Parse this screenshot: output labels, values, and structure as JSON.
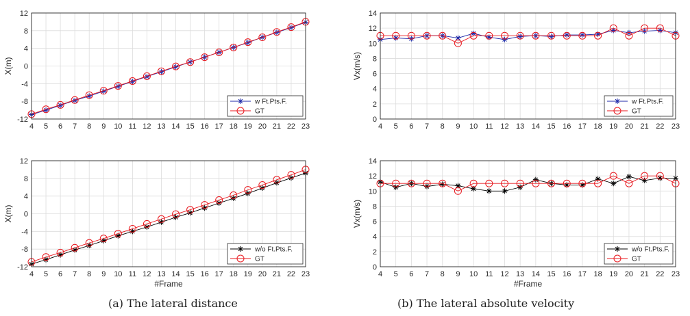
{
  "captions": {
    "a": "(a) The lateral distance",
    "b": "(b) The lateral absolute velocity"
  },
  "colors": {
    "estimate_blue": "#1f2aa8",
    "estimate_black": "#000000",
    "gt_red": "#e8171d"
  },
  "chart_data": [
    {
      "type": "line",
      "ylabel": "X(m)",
      "xlabel": "",
      "xlim": [
        4,
        23
      ],
      "ylim": [
        -12,
        12
      ],
      "yticks": [
        -12,
        -8,
        -4,
        0,
        4,
        8,
        12
      ],
      "x": [
        4,
        5,
        6,
        7,
        8,
        9,
        10,
        11,
        12,
        13,
        14,
        15,
        16,
        17,
        18,
        19,
        20,
        21,
        22,
        23
      ],
      "legend": "lower-right",
      "series": [
        {
          "name": "w Ft.Pts.F.",
          "marker": "asterisk",
          "color": "#1f2aa8",
          "values": [
            -11.0,
            -10.0,
            -8.9,
            -7.8,
            -6.8,
            -5.7,
            -4.6,
            -3.5,
            -2.4,
            -1.3,
            -0.2,
            0.9,
            2.0,
            3.1,
            4.2,
            5.3,
            6.5,
            7.6,
            8.7,
            9.9
          ]
        },
        {
          "name": "GT",
          "marker": "circle",
          "color": "#e8171d",
          "values": [
            -10.9,
            -9.8,
            -8.8,
            -7.7,
            -6.6,
            -5.6,
            -4.5,
            -3.4,
            -2.3,
            -1.2,
            -0.1,
            0.9,
            2.0,
            3.1,
            4.2,
            5.4,
            6.5,
            7.7,
            8.8,
            10.0
          ]
        }
      ]
    },
    {
      "type": "line",
      "ylabel": "Vx(m/s)",
      "xlabel": "",
      "xlim": [
        4,
        23
      ],
      "ylim": [
        0,
        14
      ],
      "yticks": [
        0,
        2,
        4,
        6,
        8,
        10,
        12,
        14
      ],
      "x": [
        4,
        5,
        6,
        7,
        8,
        9,
        10,
        11,
        12,
        13,
        14,
        15,
        16,
        17,
        18,
        19,
        20,
        21,
        22,
        23
      ],
      "legend": "lower-right",
      "series": [
        {
          "name": "w Ft.Pts.F.",
          "marker": "asterisk",
          "color": "#1f2aa8",
          "values": [
            10.5,
            10.7,
            10.6,
            11.0,
            11.0,
            10.7,
            11.3,
            10.8,
            10.5,
            10.9,
            11.0,
            10.9,
            11.1,
            11.1,
            11.2,
            11.7,
            11.4,
            11.6,
            11.7,
            11.4
          ]
        },
        {
          "name": "GT",
          "marker": "circle",
          "color": "#e8171d",
          "values": [
            11.0,
            11.0,
            11.0,
            11.0,
            11.0,
            10.0,
            11.0,
            11.0,
            11.0,
            11.0,
            11.0,
            11.0,
            11.0,
            11.0,
            11.0,
            12.0,
            11.0,
            12.0,
            12.0,
            11.0
          ]
        }
      ]
    },
    {
      "type": "line",
      "ylabel": "X(m)",
      "xlabel": "#Frame",
      "xlim": [
        4,
        23
      ],
      "ylim": [
        -12,
        12
      ],
      "yticks": [
        -12,
        -8,
        -4,
        0,
        4,
        8,
        12
      ],
      "x": [
        4,
        5,
        6,
        7,
        8,
        9,
        10,
        11,
        12,
        13,
        14,
        15,
        16,
        17,
        18,
        19,
        20,
        21,
        22,
        23
      ],
      "legend": "lower-right",
      "series": [
        {
          "name": "w/o Ft.Pts.F.",
          "marker": "asterisk",
          "color": "#000000",
          "values": [
            -11.4,
            -10.4,
            -9.3,
            -8.2,
            -7.2,
            -6.1,
            -5.0,
            -4.0,
            -3.0,
            -1.9,
            -0.8,
            0.2,
            1.3,
            2.4,
            3.5,
            4.6,
            5.8,
            7.0,
            8.1,
            9.2
          ]
        },
        {
          "name": "GT",
          "marker": "circle",
          "color": "#e8171d",
          "values": [
            -10.9,
            -9.8,
            -8.8,
            -7.7,
            -6.6,
            -5.6,
            -4.5,
            -3.4,
            -2.3,
            -1.2,
            -0.1,
            0.9,
            2.0,
            3.1,
            4.2,
            5.4,
            6.5,
            7.7,
            8.8,
            10.0
          ]
        }
      ]
    },
    {
      "type": "line",
      "ylabel": "Vx(m/s)",
      "xlabel": "#Frame",
      "xlim": [
        4,
        23
      ],
      "ylim": [
        0,
        14
      ],
      "yticks": [
        0,
        2,
        4,
        6,
        8,
        10,
        12,
        14
      ],
      "x": [
        4,
        5,
        6,
        7,
        8,
        9,
        10,
        11,
        12,
        13,
        14,
        15,
        16,
        17,
        18,
        19,
        20,
        21,
        22,
        23
      ],
      "legend": "lower-right",
      "series": [
        {
          "name": "w/o Ft.Pts.F.",
          "marker": "asterisk",
          "color": "#000000",
          "values": [
            11.2,
            10.5,
            11.0,
            10.6,
            10.9,
            10.7,
            10.3,
            10.0,
            10.0,
            10.5,
            11.5,
            11.0,
            10.8,
            10.8,
            11.6,
            11.0,
            11.9,
            11.4,
            11.7,
            11.7
          ]
        },
        {
          "name": "GT",
          "marker": "circle",
          "color": "#e8171d",
          "values": [
            11.0,
            11.0,
            11.0,
            11.0,
            11.0,
            10.0,
            11.0,
            11.0,
            11.0,
            11.0,
            11.0,
            11.0,
            11.0,
            11.0,
            11.0,
            12.0,
            11.0,
            12.0,
            12.0,
            11.0
          ]
        }
      ]
    }
  ]
}
